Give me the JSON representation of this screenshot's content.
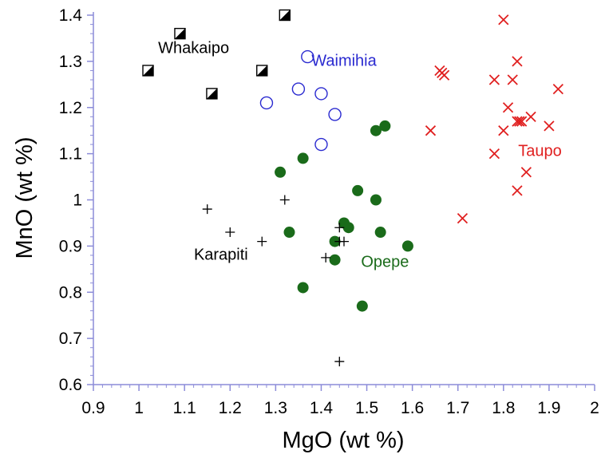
{
  "chart_data": {
    "type": "scatter",
    "title": "",
    "xlabel": "MgO (wt %)",
    "ylabel": "MnO (wt %)",
    "xlim": [
      0.9,
      2.0
    ],
    "ylim": [
      0.6,
      1.4
    ],
    "xticks": [
      "0.9",
      "1",
      "1.1",
      "1.2",
      "1.3",
      "1.4",
      "1.5",
      "1.6",
      "1.7",
      "1.8",
      "1.9",
      "2"
    ],
    "yticks": [
      "0.6",
      "0.7",
      "0.8",
      "0.9",
      "1",
      "1.1",
      "1.2",
      "1.3",
      "1.4"
    ],
    "x_tick_values": [
      0.9,
      1.0,
      1.1,
      1.2,
      1.3,
      1.4,
      1.5,
      1.6,
      1.7,
      1.8,
      1.9,
      2.0
    ],
    "y_tick_values": [
      0.6,
      0.7,
      0.8,
      0.9,
      1.0,
      1.1,
      1.2,
      1.3,
      1.4
    ],
    "grid": false,
    "legend": "none",
    "axis_color": "#8c8cd9",
    "series": [
      {
        "name": "Whakaipo",
        "marker": "half-filled-square",
        "color": "#000000",
        "points": [
          [
            1.02,
            1.28
          ],
          [
            1.09,
            1.36
          ],
          [
            1.16,
            1.23
          ],
          [
            1.27,
            1.28
          ],
          [
            1.32,
            1.4
          ]
        ]
      },
      {
        "name": "Waimihia",
        "marker": "open-circle",
        "color": "#2a2ad0",
        "points": [
          [
            1.28,
            1.21
          ],
          [
            1.35,
            1.24
          ],
          [
            1.37,
            1.31
          ],
          [
            1.4,
            1.23
          ],
          [
            1.4,
            1.12
          ],
          [
            1.43,
            1.185
          ]
        ]
      },
      {
        "name": "Taupo",
        "marker": "x",
        "color": "#e02020",
        "points": [
          [
            1.64,
            1.15
          ],
          [
            1.66,
            1.28
          ],
          [
            1.665,
            1.275
          ],
          [
            1.67,
            1.27
          ],
          [
            1.71,
            0.96
          ],
          [
            1.78,
            1.26
          ],
          [
            1.78,
            1.1
          ],
          [
            1.8,
            1.39
          ],
          [
            1.8,
            1.15
          ],
          [
            1.81,
            1.2
          ],
          [
            1.82,
            1.26
          ],
          [
            1.83,
            1.3
          ],
          [
            1.83,
            1.17
          ],
          [
            1.835,
            1.17
          ],
          [
            1.83,
            1.02
          ],
          [
            1.84,
            1.17
          ],
          [
            1.85,
            1.06
          ],
          [
            1.86,
            1.18
          ],
          [
            1.9,
            1.16
          ],
          [
            1.92,
            1.24
          ]
        ]
      },
      {
        "name": "Opepe",
        "marker": "filled-circle",
        "color": "#1a6b1a",
        "points": [
          [
            1.31,
            1.06
          ],
          [
            1.33,
            0.93
          ],
          [
            1.36,
            1.09
          ],
          [
            1.36,
            0.81
          ],
          [
            1.43,
            0.91
          ],
          [
            1.43,
            0.87
          ],
          [
            1.45,
            0.95
          ],
          [
            1.46,
            0.94
          ],
          [
            1.48,
            1.02
          ],
          [
            1.49,
            0.77
          ],
          [
            1.52,
            1.15
          ],
          [
            1.52,
            1.0
          ],
          [
            1.53,
            0.93
          ],
          [
            1.54,
            1.16
          ],
          [
            1.59,
            0.9
          ]
        ]
      },
      {
        "name": "Karapiti",
        "marker": "plus",
        "color": "#000000",
        "points": [
          [
            1.15,
            0.98
          ],
          [
            1.2,
            0.93
          ],
          [
            1.27,
            0.91
          ],
          [
            1.32,
            1.0
          ],
          [
            1.41,
            0.875
          ],
          [
            1.44,
            0.94
          ],
          [
            1.44,
            0.91
          ],
          [
            1.45,
            0.91
          ],
          [
            1.44,
            0.65
          ]
        ]
      }
    ],
    "annotations": [
      {
        "text": "Whakaipo",
        "x": 1.12,
        "y": 1.318,
        "color": "#000000"
      },
      {
        "text": "Waimihia",
        "x": 1.45,
        "y": 1.29,
        "color": "#2a2ad0"
      },
      {
        "text": "Taupo",
        "x": 1.88,
        "y": 1.095,
        "color": "#e02020"
      },
      {
        "text": "Karapiti",
        "x": 1.18,
        "y": 0.87,
        "color": "#000000"
      },
      {
        "text": "Opepe",
        "x": 1.54,
        "y": 0.855,
        "color": "#1a6b1a"
      }
    ]
  }
}
